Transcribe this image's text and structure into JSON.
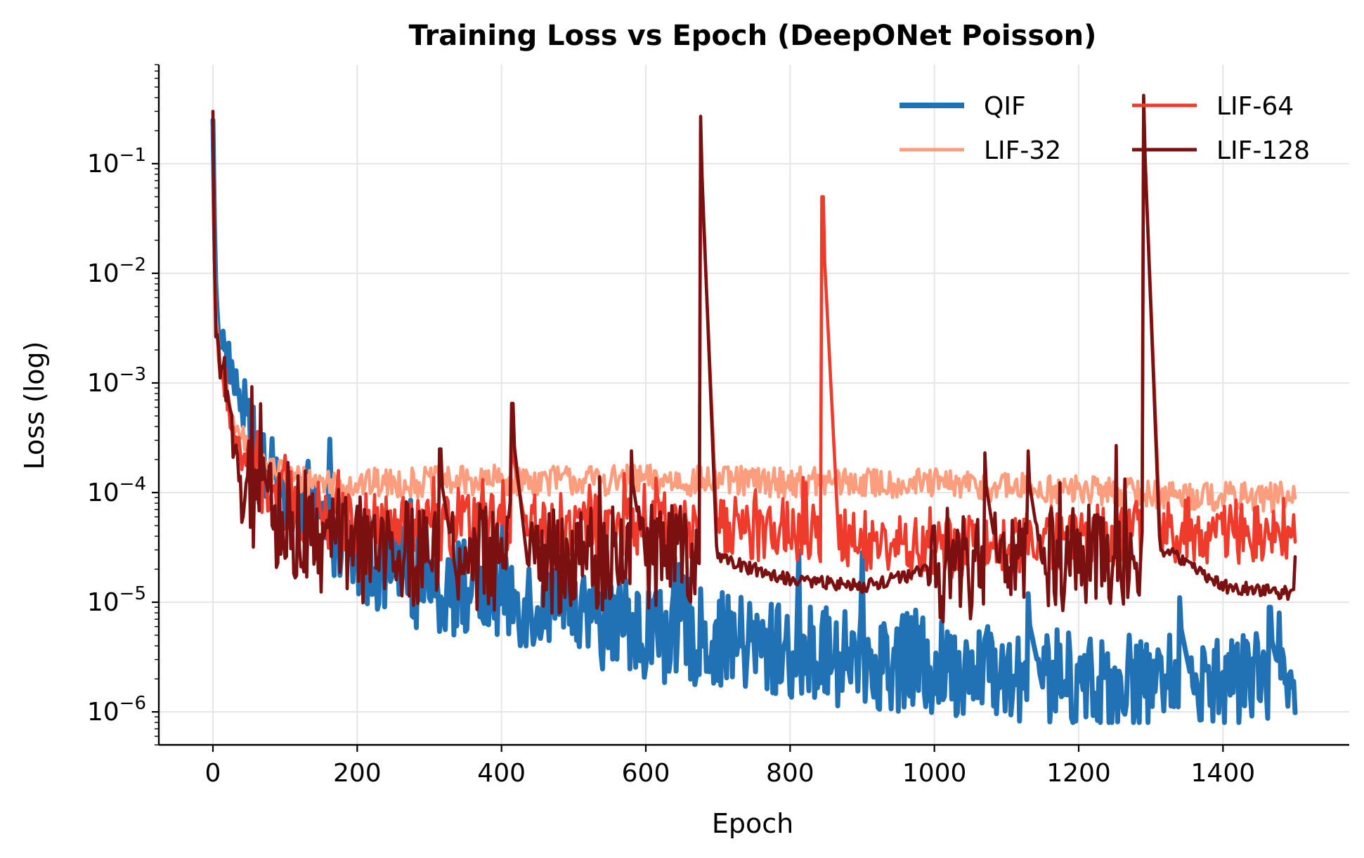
{
  "chart_data": {
    "type": "line",
    "title": "Training Loss vs Epoch (DeepONet Poisson)",
    "xlabel": "Epoch",
    "ylabel": "Loss (log)",
    "yscale": "log",
    "xlim": [
      -75,
      1575
    ],
    "ylim": [
      5e-07,
      0.8
    ],
    "xticks": [
      0,
      200,
      400,
      600,
      800,
      1000,
      1200,
      1400
    ],
    "xtick_labels": [
      "0",
      "200",
      "400",
      "600",
      "800",
      "1000",
      "1200",
      "1400"
    ],
    "yticks": [
      {
        "value": 0.1,
        "base": "10",
        "exp": "−1"
      },
      {
        "value": 0.01,
        "base": "10",
        "exp": "−2"
      },
      {
        "value": 0.001,
        "base": "10",
        "exp": "−3"
      },
      {
        "value": 0.0001,
        "base": "10",
        "exp": "−4"
      },
      {
        "value": 1e-05,
        "base": "10",
        "exp": "−5"
      },
      {
        "value": 1e-06,
        "base": "10",
        "exp": "−6"
      }
    ],
    "grid": true,
    "legend_position": "top-right",
    "series": [
      {
        "name": "QIF",
        "color": "#2171b5",
        "anchors": [
          [
            0,
            0.25
          ],
          [
            3,
            0.01
          ],
          [
            8,
            0.003
          ],
          [
            20,
            0.0018
          ],
          [
            40,
            0.0006
          ],
          [
            60,
            0.00018
          ],
          [
            100,
            8e-05
          ],
          [
            150,
            5e-05
          ],
          [
            200,
            2.5e-05
          ],
          [
            300,
            1.5e-05
          ],
          [
            400,
            1.2e-05
          ],
          [
            500,
            8e-06
          ],
          [
            600,
            5.5e-06
          ],
          [
            700,
            4.5e-06
          ],
          [
            800,
            3.5e-06
          ],
          [
            900,
            3e-06
          ],
          [
            1000,
            2.5e-06
          ],
          [
            1100,
            2.2e-06
          ],
          [
            1200,
            2e-06
          ],
          [
            1300,
            1.9e-06
          ],
          [
            1400,
            1.8e-06
          ],
          [
            1500,
            1.9e-06
          ]
        ],
        "noise": 0.45,
        "spikes": [
          [
            1130,
            1.2e-05
          ],
          [
            1340,
            1.1e-05
          ],
          [
            1465,
            9e-06
          ]
        ]
      },
      {
        "name": "LIF-32",
        "color": "#fc9d7e",
        "anchors": [
          [
            0,
            0.22
          ],
          [
            3,
            0.005
          ],
          [
            10,
            0.0014
          ],
          [
            30,
            0.0004
          ],
          [
            60,
            0.00019
          ],
          [
            120,
            0.00013
          ],
          [
            200,
            0.00012
          ],
          [
            400,
            0.00013
          ],
          [
            600,
            0.00013
          ],
          [
            800,
            0.000125
          ],
          [
            1000,
            0.00012
          ],
          [
            1200,
            0.000105
          ],
          [
            1400,
            9.2e-05
          ],
          [
            1500,
            9e-05
          ]
        ],
        "noise": 0.14,
        "spikes": []
      },
      {
        "name": "LIF-64",
        "color": "#ef3b2c",
        "anchors": [
          [
            0,
            0.2
          ],
          [
            3,
            0.004
          ],
          [
            10,
            0.0013
          ],
          [
            30,
            0.00032
          ],
          [
            60,
            0.00013
          ],
          [
            120,
            7e-05
          ],
          [
            200,
            5e-05
          ],
          [
            300,
            4.5e-05
          ],
          [
            400,
            5e-05
          ],
          [
            600,
            5e-05
          ],
          [
            800,
            4.5e-05
          ],
          [
            900,
            3.5e-05
          ],
          [
            1000,
            3e-05
          ],
          [
            1100,
            3.5e-05
          ],
          [
            1200,
            4e-05
          ],
          [
            1300,
            4.5e-05
          ],
          [
            1500,
            4.5e-05
          ]
        ],
        "noise": 0.3,
        "spikes": [
          [
            845,
            0.05
          ],
          [
            1290,
            0.4
          ],
          [
            676,
            0.2
          ],
          [
            415,
            0.0004
          ]
        ]
      },
      {
        "name": "LIF-128",
        "color": "#7b1010",
        "anchors": [
          [
            0,
            0.3
          ],
          [
            3,
            0.003
          ],
          [
            10,
            0.0012
          ],
          [
            30,
            0.00024
          ],
          [
            60,
            8e-05
          ],
          [
            100,
            5e-05
          ],
          [
            200,
            3e-05
          ],
          [
            300,
            2.5e-05
          ],
          [
            400,
            2.5e-05
          ],
          [
            600,
            2.5e-05
          ],
          [
            670,
            3e-05
          ],
          [
            700,
            2.5e-05
          ],
          [
            800,
            1.6e-05
          ],
          [
            900,
            1.4e-05
          ],
          [
            1000,
            2e-05
          ],
          [
            1200,
            2.5e-05
          ],
          [
            1280,
            3e-05
          ],
          [
            1320,
            3e-05
          ],
          [
            1400,
            1.4e-05
          ],
          [
            1500,
            1.2e-05
          ]
        ],
        "noise": 0.5,
        "spikes": [
          [
            676,
            0.27
          ],
          [
            1290,
            0.42
          ],
          [
            415,
            0.00065
          ],
          [
            315,
            0.00025
          ],
          [
            580,
            0.00024
          ],
          [
            1070,
            0.00023
          ],
          [
            1130,
            0.00024
          ]
        ],
        "quiet_ranges": [
          [
            690,
            990
          ],
          [
            1300,
            1500
          ]
        ]
      }
    ]
  }
}
